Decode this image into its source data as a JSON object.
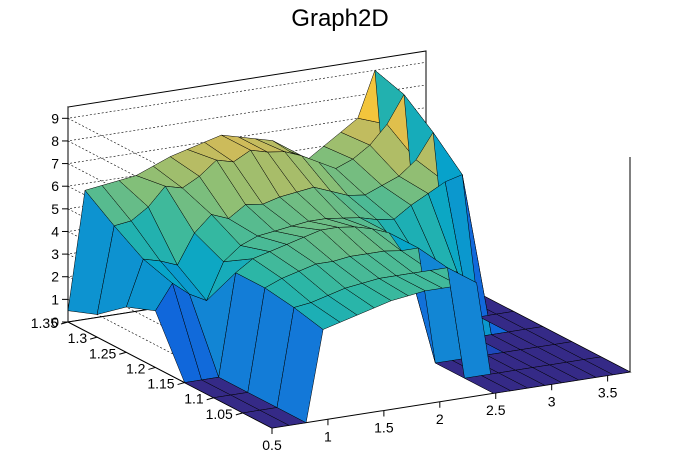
{
  "chart_data": {
    "type": "surface",
    "title": "Graph2D",
    "x_axis": {
      "range": [
        0.5,
        3.7
      ],
      "ticks": [
        0.5,
        1,
        1.5,
        2,
        2.5,
        3,
        3.5
      ]
    },
    "y_axis": {
      "range": [
        1.0,
        1.35
      ],
      "ticks": [
        1.05,
        1.1,
        1.15,
        1.2,
        1.25,
        1.3,
        1.35
      ]
    },
    "z_axis": {
      "range": [
        0,
        9.5
      ],
      "ticks": [
        0,
        1,
        2,
        3,
        4,
        5,
        6,
        7,
        8,
        9
      ]
    },
    "grid": "z-gridlines on back walls",
    "colormap": "viridis-like (blue → green → yellow)",
    "colormap_stops": [
      "#352a87",
      "#0f5cdd",
      "#1481d6",
      "#06a4ca",
      "#2eb7a4",
      "#87bf77",
      "#d1bb59",
      "#fec832",
      "#f9fb0e"
    ],
    "surface_rows": [
      {
        "y": 1.35,
        "z": [
          0.5,
          5.7,
          5.8,
          5.9,
          6.0,
          6.3,
          6.6,
          6.8,
          7.0,
          7.2,
          7.0,
          6.8,
          6.6,
          6.0,
          5.5,
          6.0,
          6.5,
          7.0,
          9.0,
          0.0,
          0.0,
          0.0
        ]
      },
      {
        "y": 1.3,
        "z": [
          1.0,
          4.8,
          4.9,
          5.4,
          6.2,
          6.0,
          6.4,
          7.0,
          6.8,
          7.2,
          7.0,
          6.9,
          6.6,
          6.2,
          5.8,
          6.1,
          6.6,
          7.4,
          8.6,
          0.0,
          0.0,
          0.0
        ]
      },
      {
        "y": 1.25,
        "z": [
          2.0,
          4.0,
          3.8,
          3.5,
          4.8,
          5.5,
          5.2,
          5.7,
          5.6,
          5.8,
          5.9,
          6.0,
          5.7,
          5.4,
          5.3,
          5.6,
          5.9,
          6.5,
          7.6,
          0.0,
          0.0,
          0.0
        ]
      },
      {
        "y": 1.2,
        "z": [
          2.5,
          3.6,
          3.0,
          2.6,
          4.2,
          4.8,
          5.1,
          5.2,
          5.3,
          5.4,
          5.4,
          5.3,
          5.2,
          5.0,
          4.9,
          5.4,
          5.8,
          6.2,
          6.4,
          0.0,
          0.0,
          0.0
        ]
      },
      {
        "y": 1.15,
        "z": [
          0.0,
          0.0,
          0.0,
          4.5,
          5.0,
          5.2,
          5.4,
          5.6,
          5.8,
          5.8,
          5.7,
          5.5,
          5.2,
          4.0,
          3.5,
          3.2,
          3.0,
          0.0,
          0.0,
          0.0,
          0.0,
          0.0
        ]
      },
      {
        "y": 1.1,
        "z": [
          0.0,
          0.0,
          0.0,
          4.5,
          4.8,
          5.0,
          5.2,
          5.2,
          5.3,
          5.3,
          5.3,
          5.2,
          5.2,
          0.0,
          0.0,
          0.0,
          0.0,
          0.0,
          0.0,
          0.0,
          0.0,
          0.0
        ]
      },
      {
        "y": 1.05,
        "z": [
          0.0,
          0.0,
          0.0,
          4.3,
          4.4,
          4.6,
          4.8,
          4.9,
          5.0,
          5.0,
          5.0,
          5.0,
          5.0,
          0.0,
          0.0,
          0.0,
          0.0,
          0.0,
          0.0,
          0.0,
          0.0,
          0.0
        ]
      },
      {
        "y": 1.0,
        "z": [
          0.0,
          0.0,
          0.0,
          4.0,
          4.2,
          4.4,
          4.6,
          4.8,
          4.9,
          5.0,
          5.0,
          5.0,
          5.0,
          0.0,
          0.0,
          0.0,
          0.0,
          0.0,
          0.0,
          0.0,
          0.0,
          0.0
        ]
      }
    ]
  }
}
